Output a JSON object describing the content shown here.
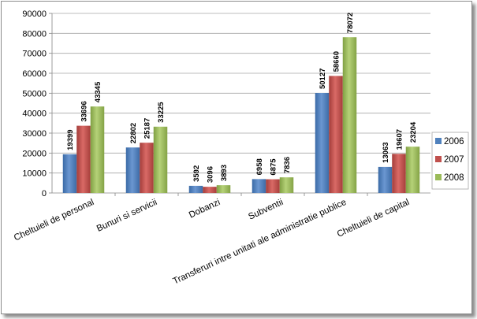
{
  "chart_data": {
    "type": "bar",
    "title": "",
    "xlabel": "",
    "ylabel": "",
    "ylim": [
      0,
      90000
    ],
    "yticks": [
      0,
      10000,
      20000,
      30000,
      40000,
      50000,
      60000,
      70000,
      80000,
      90000
    ],
    "grid": true,
    "legend": "right",
    "categories": [
      "Cheltuieli de personal",
      "Bunuri si servicii",
      "Dobanzi",
      "Subventii",
      "Transferuri intre unitati ale administratie publice",
      "Cheltuieli de capital"
    ],
    "series": [
      {
        "name": "2006",
        "color": "#4f81bd",
        "values": [
          19399,
          22802,
          3592,
          6958,
          50127,
          13063
        ]
      },
      {
        "name": "2007",
        "color": "#c0504d",
        "values": [
          33696,
          25187,
          3096,
          6875,
          58660,
          19607
        ]
      },
      {
        "name": "2008",
        "color": "#9bbb59",
        "values": [
          43345,
          33225,
          3893,
          7836,
          78072,
          23204
        ]
      }
    ]
  }
}
